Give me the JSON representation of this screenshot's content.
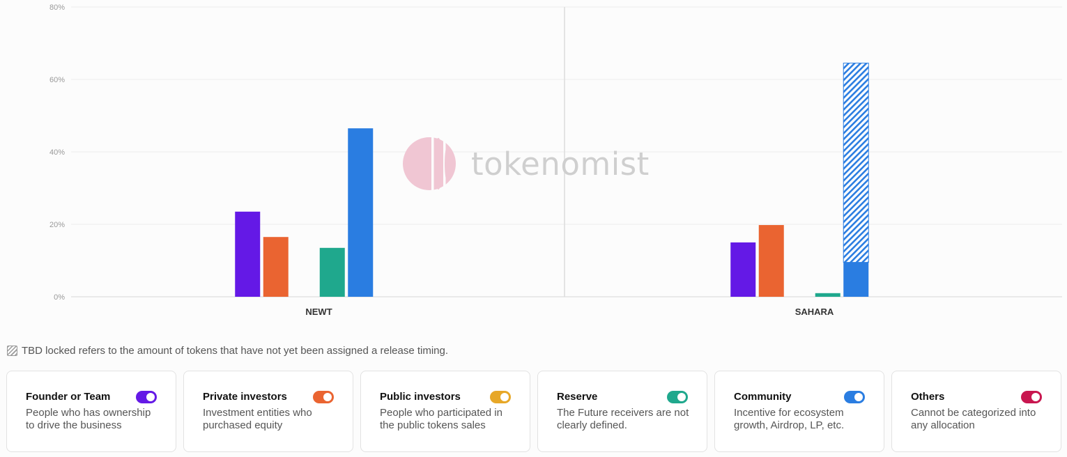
{
  "chart_data": {
    "type": "bar",
    "categories": [
      "NEWT",
      "SAHARA"
    ],
    "ylim": [
      0,
      80
    ],
    "yticks": [
      "0%",
      "20%",
      "40%",
      "60%",
      "80%"
    ],
    "grid": true,
    "series": [
      {
        "name": "Founder or Team",
        "color": "#6419E6",
        "values": [
          23.5,
          15
        ]
      },
      {
        "name": "Private investors",
        "color": "#EA6431",
        "values": [
          16.5,
          19.8
        ]
      },
      {
        "name": "Public investors",
        "color": "#E7A727",
        "values": [
          0,
          0
        ]
      },
      {
        "name": "Reserve",
        "color": "#1FA88D",
        "values": [
          13.5,
          1
        ]
      },
      {
        "name": "Community",
        "color": "#2A7DE1",
        "values": [
          46.5,
          9.5
        ],
        "tbd_locked": [
          0,
          55
        ]
      },
      {
        "name": "Others",
        "color": "#C8164F",
        "values": [
          0,
          0
        ]
      }
    ]
  },
  "watermark": "tokenomist",
  "note": "TBD locked refers to the amount of tokens that have not yet been assigned a release timing.",
  "legend": [
    {
      "title": "Founder or Team",
      "desc": "People who has ownership to drive the business",
      "color": "#6419E6"
    },
    {
      "title": "Private investors",
      "desc": "Investment entities who purchased equity",
      "color": "#EA6431"
    },
    {
      "title": "Public investors",
      "desc": "People who participated in the public tokens sales",
      "color": "#E7A727"
    },
    {
      "title": "Reserve",
      "desc": "The Future receivers are not clearly defined.",
      "color": "#1FA88D"
    },
    {
      "title": "Community",
      "desc": "Incentive for ecosystem growth, Airdrop, LP, etc.",
      "color": "#2A7DE1"
    },
    {
      "title": "Others",
      "desc": "Cannot be categorized into any allocation",
      "color": "#C8164F"
    }
  ]
}
